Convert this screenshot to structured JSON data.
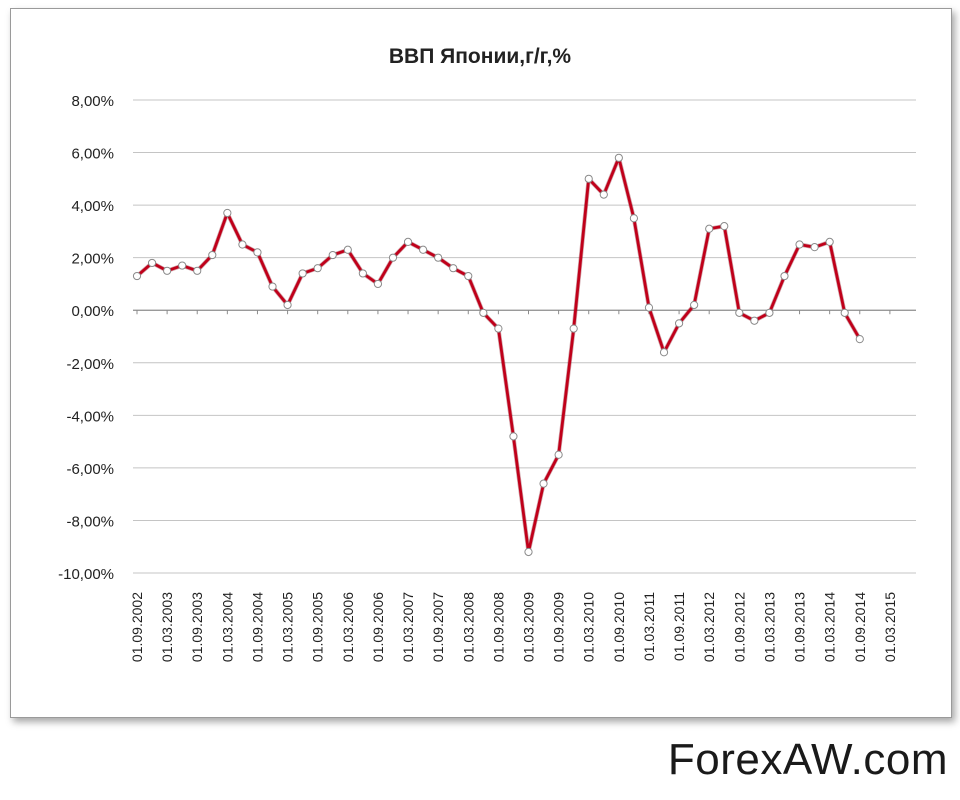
{
  "watermark": "ForexAW.com",
  "chart_data": {
    "type": "line",
    "title": "ВВП Японии,г/г,%",
    "xlabel": "",
    "ylabel": "",
    "ylim": [
      -10,
      8
    ],
    "y_ticks": [
      "8,00%",
      "6,00%",
      "4,00%",
      "2,00%",
      "0,00%",
      "-2,00%",
      "-4,00%",
      "-6,00%",
      "-8,00%",
      "-10,00%"
    ],
    "x_tick_labels": [
      "01.09.2002",
      "01.03.2003",
      "01.09.2003",
      "01.03.2004",
      "01.09.2004",
      "01.03.2005",
      "01.09.2005",
      "01.03.2006",
      "01.09.2006",
      "01.03.2007",
      "01.09.2007",
      "01.03.2008",
      "01.09.2008",
      "01.03.2009",
      "01.09.2009",
      "01.03.2010",
      "01.09.2010",
      "01.03.2011",
      "01.09.2011",
      "01.03.2012",
      "01.09.2012",
      "01.03.2013",
      "01.09.2013",
      "01.03.2014",
      "01.09.2014",
      "01.03.2015"
    ],
    "x_interval": "quarterly",
    "grid": true,
    "legend": "none",
    "series_color": "#c0001a",
    "values": [
      1.3,
      1.8,
      1.5,
      1.7,
      1.5,
      2.1,
      3.7,
      2.5,
      2.2,
      0.9,
      0.2,
      1.4,
      1.6,
      2.1,
      2.3,
      1.4,
      1.0,
      2.0,
      2.6,
      2.3,
      2.0,
      1.6,
      1.3,
      -0.1,
      -0.7,
      -4.8,
      -9.2,
      -6.6,
      -5.5,
      -0.7,
      5.0,
      4.4,
      5.8,
      3.5,
      0.1,
      -1.6,
      -0.5,
      0.2,
      3.1,
      3.2,
      -0.1,
      -0.4,
      -0.1,
      1.3,
      2.5,
      2.4,
      2.6,
      -0.1,
      -1.1
    ]
  }
}
